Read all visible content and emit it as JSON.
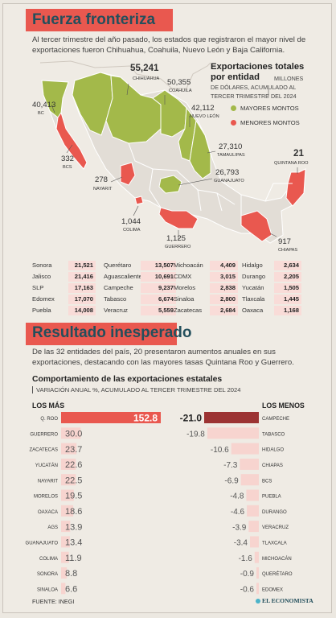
{
  "colors": {
    "green": "#a3b94a",
    "red": "#e9584f",
    "light_red": "#f7d4cf",
    "dark_red": "#9c3333",
    "pink_cell": "#f9dcd8",
    "title": "#234f5c"
  },
  "header1": {
    "title": "Fuerza fronteriza",
    "text": "Al tercer trimestre del año pasado, los estados que registraron el mayor nivel de exportaciones fueron Chihuahua, Coahuila, Nuevo León y Baja California."
  },
  "map": {
    "title_line1": "Exportaciones totales",
    "title_line2": "por entidad",
    "subtitle_line1": "MILLONES",
    "subtitle_line2": "DE DÓLARES, ACUMULADO AL",
    "subtitle_line3": "TERCER TRIMESTRE DEL 2024",
    "legend_high": "MAYORES MONTOS",
    "legend_low": "MENORES MONTOS",
    "labels": [
      {
        "value": "55,241",
        "state": "CHIHUAHUA"
      },
      {
        "value": "50,355",
        "state": "COAHUILA"
      },
      {
        "value": "40,413",
        "state": "BC"
      },
      {
        "value": "42,112",
        "state": "NUEVO LEÓN"
      },
      {
        "value": "27,310",
        "state": "TAMAULIPAS"
      },
      {
        "value": "26,793",
        "state": "GUANAJUATO"
      },
      {
        "value": "332",
        "state": "BCS"
      },
      {
        "value": "278",
        "state": "NAYARIT"
      },
      {
        "value": "21",
        "state": "QUINTANA ROO"
      },
      {
        "value": "1,044",
        "state": "COLIMA"
      },
      {
        "value": "1,125",
        "state": "GUERRERO"
      },
      {
        "value": "917",
        "state": "CHIAPAS"
      }
    ]
  },
  "state_table": [
    [
      {
        "name": "Sonora",
        "value": "21,521"
      },
      {
        "name": "Querétaro",
        "value": "13,507"
      },
      {
        "name": "Michoacán",
        "value": "4,409"
      },
      {
        "name": "Hidalgo",
        "value": "2,634"
      }
    ],
    [
      {
        "name": "Jalisco",
        "value": "21,416"
      },
      {
        "name": "Aguascalientes",
        "value": "10,691"
      },
      {
        "name": "CDMX",
        "value": "3,015"
      },
      {
        "name": "Durango",
        "value": "2,205"
      }
    ],
    [
      {
        "name": "SLP",
        "value": "17,163"
      },
      {
        "name": "Campeche",
        "value": "9,237"
      },
      {
        "name": "Morelos",
        "value": "2,838"
      },
      {
        "name": "Yucatán",
        "value": "1,505"
      }
    ],
    [
      {
        "name": "Edomex",
        "value": "17,070"
      },
      {
        "name": "Tabasco",
        "value": "6,674"
      },
      {
        "name": "Sinaloa",
        "value": "2,800"
      },
      {
        "name": "Tlaxcala",
        "value": "1,445"
      }
    ],
    [
      {
        "name": "Puebla",
        "value": "14,008"
      },
      {
        "name": "Veracruz",
        "value": "5,559"
      },
      {
        "name": "Zacatecas",
        "value": "2,684"
      },
      {
        "name": "Oaxaca",
        "value": "1,168"
      }
    ]
  ],
  "header2": {
    "title": "Resultado inesperado",
    "text": "De las 32 entidades del país, 20 presentaron aumentos anuales en sus exportaciones, destacando con las mayores tasas Quintana Roo y Guerrero."
  },
  "chart_data": {
    "type": "bar",
    "title": "Comportamiento de las exportaciones estatales",
    "subtitle": "VARIACIÓN ANUAL %, ACUMULADO AL TERCER TRIMESTRE DEL 2024",
    "series": [
      {
        "name": "LOS MÁS",
        "categories": [
          "Q. ROO",
          "GUERRERO",
          "ZACATECAS",
          "YUCATÁN",
          "NAYARIT",
          "MORELOS",
          "OAXACA",
          "AGS",
          "GUANAJUATO",
          "COLIMA",
          "SONORA",
          "SINALOA"
        ],
        "values": [
          152.8,
          30.0,
          23.7,
          22.6,
          22.5,
          19.5,
          18.6,
          13.9,
          13.4,
          11.9,
          8.8,
          6.6
        ],
        "labels": [
          "152.8",
          "30.0",
          "23.7",
          "22.6",
          "22.5",
          "19.5",
          "18.6",
          "13.9",
          "13.4",
          "11.9",
          "8.8",
          "6.6"
        ]
      },
      {
        "name": "LOS MENOS",
        "categories": [
          "CAMPECHE",
          "TABASCO",
          "HIDALGO",
          "CHIAPAS",
          "BCS",
          "PUEBLA",
          "DURANGO",
          "VERACRUZ",
          "TLAXCALA",
          "MICHOACÁN",
          "QUERÉTARO",
          "EDOMEX"
        ],
        "values": [
          -21.0,
          -19.8,
          -10.6,
          -7.3,
          -6.9,
          -4.8,
          -4.6,
          -3.9,
          -3.4,
          -1.6,
          -0.9,
          -0.6
        ],
        "labels": [
          "-21.0",
          "-19.8",
          "-10.6",
          "-7.3",
          "-6.9",
          "-4.8",
          "-4.6",
          "-3.9",
          "-3.4",
          "-1.6",
          "-0.9",
          "-0.6"
        ]
      }
    ]
  },
  "footer": {
    "source": "FUENTE: INEGI",
    "brand": "EL ECONOMISTA"
  }
}
